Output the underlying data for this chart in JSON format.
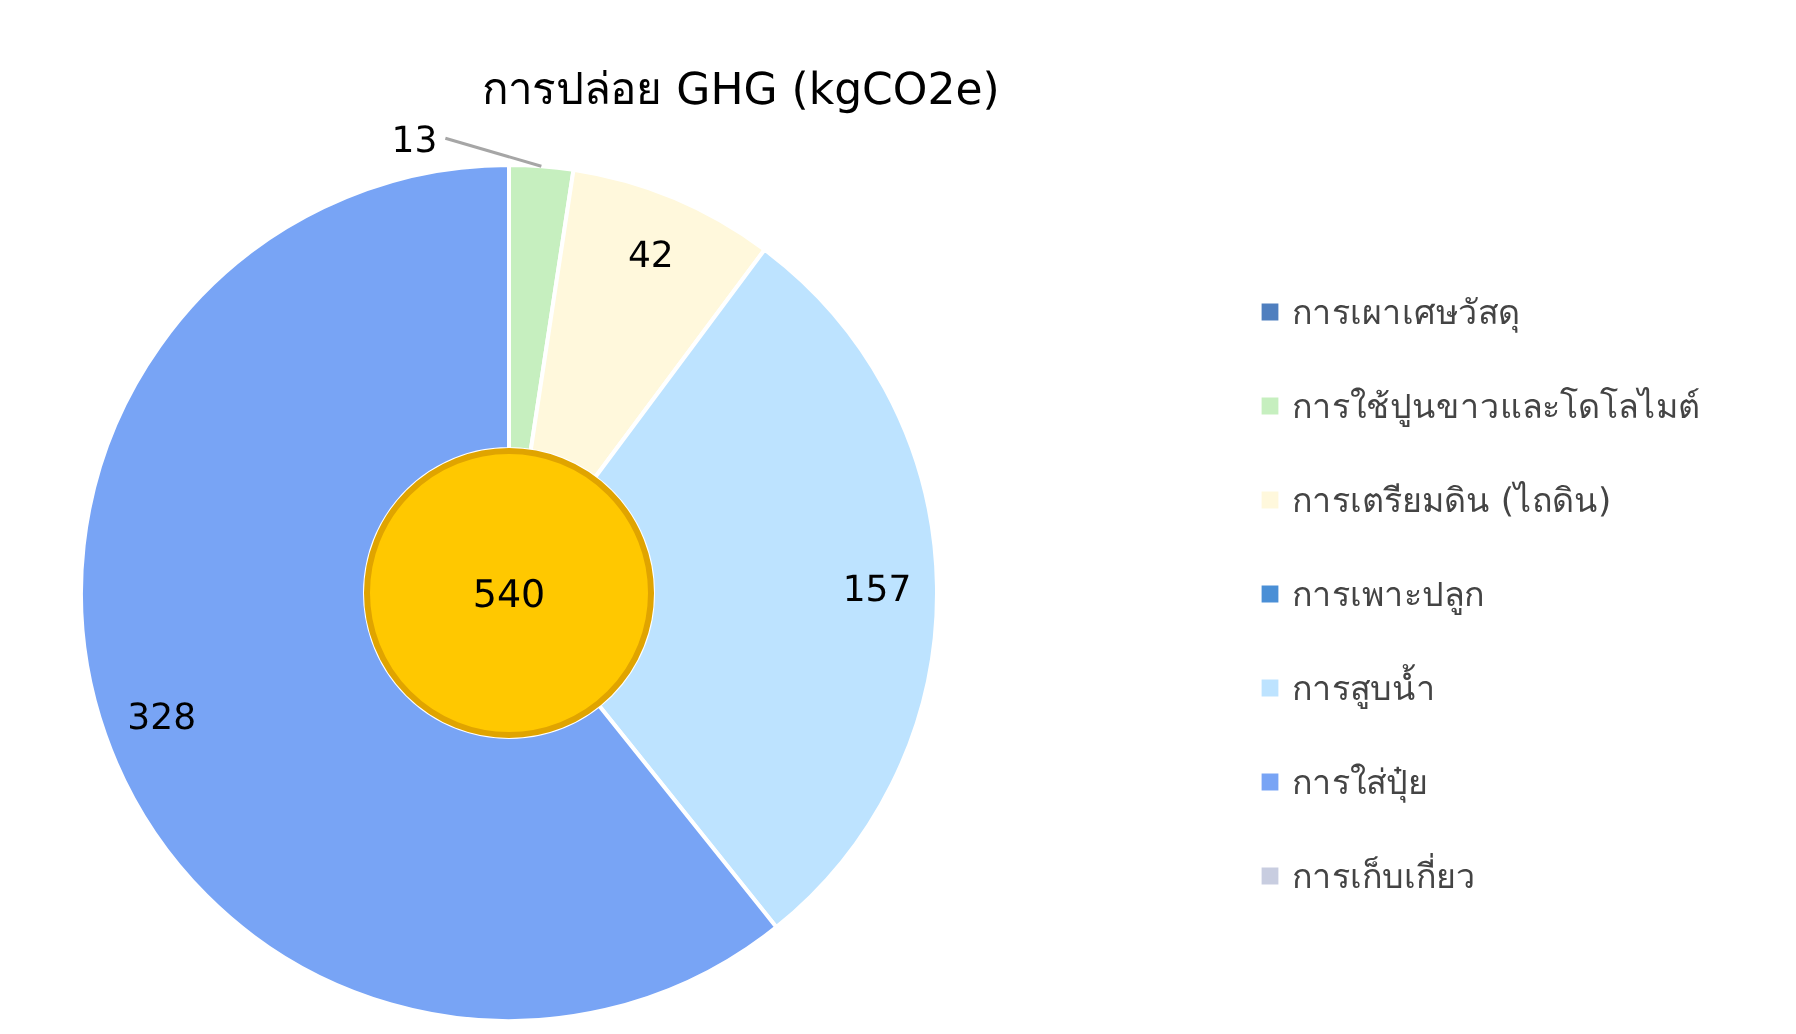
{
  "chart_data": {
    "type": "donut",
    "title": "การปล่อย GHG (kgCO2e)",
    "categories": [
      "การเผาเศษวัสดุ",
      "การใช้ปูนขาวและโดโลไมต์",
      "การเตรียมดิน (ไถดิน)",
      "การเพาะปลูก",
      "การสูบน้ำ",
      "การใส่ปุ๋ย",
      "การเก็บเกี่ยว"
    ],
    "values": [
      0,
      13,
      42,
      0,
      157,
      328,
      0
    ],
    "colors": [
      "#4f7fbf",
      "#c6efbf",
      "#fff8dc",
      "#4a8fd6",
      "#bde3ff",
      "#78a4f5",
      "#c8cde0"
    ],
    "value_labels": [
      null,
      "13",
      "42",
      null,
      "157",
      "328",
      null
    ],
    "annotations": [
      "540"
    ],
    "legend": "right"
  }
}
